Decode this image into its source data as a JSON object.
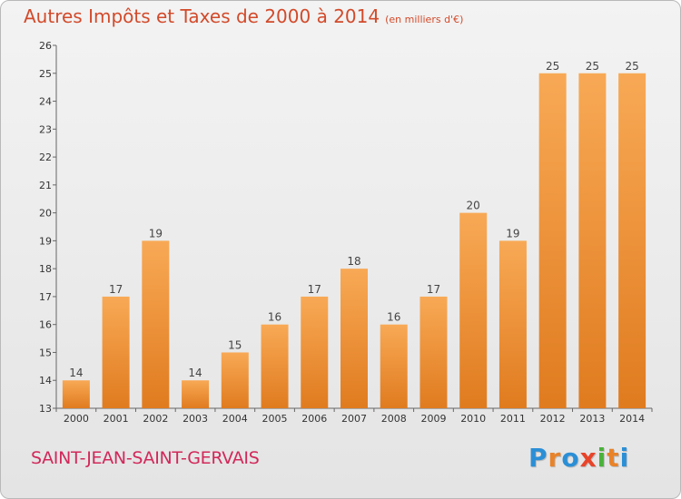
{
  "header": {
    "title": "Autres Impôts et Taxes de 2000 à 2014",
    "unit": "(en milliers d'€)"
  },
  "footer": {
    "town": "SAINT-JEAN-SAINT-GERVAIS",
    "logo": [
      "P",
      "r",
      "o",
      "x",
      "i",
      "t",
      "i"
    ],
    "logo_colors": [
      "#2b8fd6",
      "#e8832a",
      "#2b8fd6",
      "#e8442a",
      "#49b23a",
      "#e8832a",
      "#2b8fd6"
    ]
  },
  "colors": {
    "bar_light": "#f8a955",
    "bar_dark": "#e07b1f",
    "title": "#d24a2a",
    "town": "#d2285a"
  },
  "chart_data": {
    "type": "bar",
    "title": "Autres Impôts et Taxes de 2000 à 2014",
    "subtitle": "(en milliers d'€)",
    "categories": [
      "2000",
      "2001",
      "2002",
      "2003",
      "2004",
      "2005",
      "2006",
      "2007",
      "2008",
      "2009",
      "2010",
      "2011",
      "2012",
      "2013",
      "2014"
    ],
    "values": [
      14,
      17,
      19,
      14,
      15,
      16,
      17,
      18,
      16,
      17,
      20,
      19,
      25,
      25,
      25
    ],
    "ylim": [
      13,
      26
    ],
    "yticks": [
      13,
      14,
      15,
      16,
      17,
      18,
      19,
      20,
      21,
      22,
      23,
      24,
      25,
      26
    ],
    "grid": false,
    "legend": "none"
  }
}
